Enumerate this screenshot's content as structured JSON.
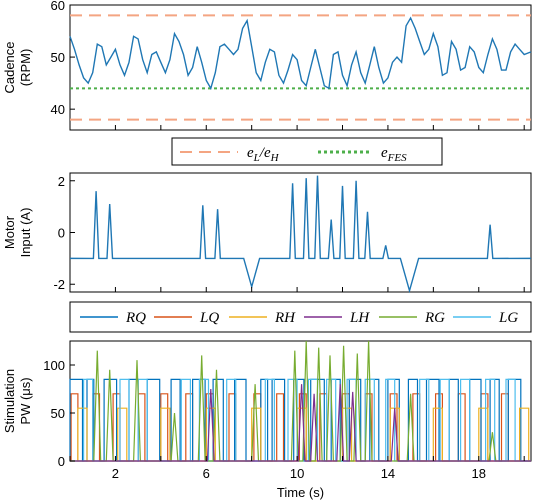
{
  "chart_data": [
    {
      "type": "line",
      "ylabel": [
        "Cadence",
        "(RPM)"
      ],
      "xlim": [
        0,
        20.3
      ],
      "ylim": [
        36,
        60
      ],
      "yticks": [
        40,
        50,
        60
      ],
      "series": [
        {
          "name": "cadence",
          "color": "#1f77b4",
          "x": [
            0,
            0.2,
            0.4,
            0.6,
            0.8,
            1.0,
            1.2,
            1.4,
            1.6,
            1.8,
            2.0,
            2.2,
            2.4,
            2.6,
            2.8,
            3.0,
            3.2,
            3.4,
            3.6,
            3.8,
            4.0,
            4.2,
            4.4,
            4.6,
            4.8,
            5.0,
            5.2,
            5.4,
            5.6,
            5.8,
            6.0,
            6.2,
            6.4,
            6.6,
            6.8,
            7.0,
            7.2,
            7.4,
            7.6,
            7.8,
            8.0,
            8.2,
            8.4,
            8.6,
            8.8,
            9.0,
            9.2,
            9.4,
            9.6,
            9.8,
            10.0,
            10.2,
            10.4,
            10.6,
            10.8,
            11.0,
            11.2,
            11.4,
            11.6,
            11.8,
            12.0,
            12.2,
            12.4,
            12.6,
            12.8,
            13.0,
            13.2,
            13.4,
            13.6,
            13.8,
            14.0,
            14.2,
            14.4,
            14.6,
            14.8,
            15.0,
            15.2,
            15.4,
            15.6,
            15.8,
            16.0,
            16.2,
            16.4,
            16.6,
            16.8,
            17.0,
            17.2,
            17.4,
            17.6,
            17.8,
            18.0,
            18.2,
            18.4,
            18.6,
            18.8,
            19.0,
            19.2,
            19.4,
            19.6,
            19.8,
            20.0,
            20.3
          ],
          "y": [
            54.0,
            51.5,
            48.5,
            46.0,
            45.0,
            47.0,
            52.5,
            52.0,
            48.5,
            50.0,
            51.5,
            48.5,
            46.5,
            49.0,
            54.0,
            53.5,
            49.5,
            47.0,
            50.5,
            51.0,
            49.0,
            47.0,
            49.5,
            54.5,
            53.0,
            50.5,
            46.5,
            48.0,
            52.0,
            49.0,
            45.5,
            44.0,
            47.0,
            52.0,
            52.5,
            51.5,
            50.5,
            51.5,
            55.5,
            57.0,
            52.0,
            47.0,
            45.5,
            49.0,
            51.5,
            51.0,
            46.5,
            45.0,
            47.5,
            50.5,
            49.5,
            45.5,
            44.5,
            48.0,
            51.5,
            48.0,
            44.5,
            44.0,
            50.5,
            51.0,
            46.5,
            44.5,
            48.5,
            51.0,
            47.0,
            45.0,
            48.5,
            52.0,
            48.0,
            45.0,
            46.0,
            49.0,
            50.0,
            49.0,
            56.0,
            57.5,
            55.5,
            53.0,
            50.5,
            51.5,
            54.5,
            52.0,
            46.5,
            47.0,
            53.0,
            51.5,
            47.5,
            48.0,
            52.0,
            51.0,
            48.0,
            47.0,
            50.5,
            53.5,
            51.5,
            47.5,
            47.5,
            51.0,
            52.5,
            51.5,
            50.5,
            51.0
          ]
        }
      ],
      "hlines": [
        {
          "name": "e_L/e_H",
          "values": [
            58,
            38
          ],
          "style": "dashed",
          "color": "#f4a582"
        },
        {
          "name": "e_FES",
          "values": [
            44
          ],
          "style": "dotted",
          "color": "#4daf4a"
        }
      ],
      "legend": {
        "placement": "below",
        "entries": [
          {
            "label": "e",
            "sub": "L",
            "label2": "/e",
            "sub2": "H",
            "style": "dashed",
            "color": "#f4a582"
          },
          {
            "label": "e",
            "sub": "FES",
            "style": "dotted",
            "color": "#4daf4a"
          }
        ]
      }
    },
    {
      "type": "line",
      "ylabel": [
        "Motor",
        "Input (A)"
      ],
      "xlim": [
        0,
        20.3
      ],
      "ylim": [
        -2.3,
        2.3
      ],
      "yticks": [
        -2,
        0,
        2
      ],
      "baseline": -1,
      "series": [
        {
          "name": "motor",
          "color": "#1f77b4",
          "spikes": [
            {
              "t": 1.15,
              "peak": 1.6
            },
            {
              "t": 1.75,
              "peak": 1.1
            },
            {
              "t": 5.85,
              "peak": 1.05
            },
            {
              "t": 6.5,
              "peak": 0.9
            },
            {
              "t": 8.0,
              "peak": -2.1,
              "width": 0.35
            },
            {
              "t": 9.8,
              "peak": 1.9
            },
            {
              "t": 10.4,
              "peak": 2.1
            },
            {
              "t": 10.9,
              "peak": 2.2
            },
            {
              "t": 11.5,
              "peak": 0.5
            },
            {
              "t": 12.0,
              "peak": 1.8
            },
            {
              "t": 12.6,
              "peak": 2.0
            },
            {
              "t": 13.1,
              "peak": 0.8
            },
            {
              "t": 13.9,
              "peak": -0.5
            },
            {
              "t": 14.95,
              "peak": -2.25,
              "width": 0.4
            },
            {
              "t": 18.5,
              "peak": 0.3
            }
          ]
        }
      ],
      "legend": {
        "placement": "below",
        "entries": [
          {
            "label": "RQ",
            "color": "#0072bd"
          },
          {
            "label": "LQ",
            "color": "#d95319"
          },
          {
            "label": "RH",
            "color": "#edb120"
          },
          {
            "label": "LH",
            "color": "#7e2f8e"
          },
          {
            "label": "RG",
            "color": "#77ac30"
          },
          {
            "label": "LG",
            "color": "#4dbeee"
          }
        ]
      }
    },
    {
      "type": "line",
      "ylabel": [
        "Stimulation",
        "PW (μs)"
      ],
      "xlabel": "Time (s)",
      "xlim": [
        0,
        20.3
      ],
      "ylim": [
        0,
        125
      ],
      "yticks": [
        0,
        50,
        100
      ],
      "xticks": [
        2,
        6,
        10,
        14,
        18
      ],
      "series": [
        {
          "name": "LQ",
          "color": "#d95319",
          "level": 70,
          "pulses": [
            [
              0.05,
              0.35
            ],
            [
              1.0,
              1.3
            ],
            [
              1.9,
              2.2
            ],
            [
              3.0,
              3.3
            ],
            [
              4.0,
              4.3
            ],
            [
              5.1,
              5.4
            ],
            [
              6.0,
              6.3
            ],
            [
              7.0,
              7.3
            ],
            [
              8.1,
              8.4
            ],
            [
              9.1,
              9.4
            ],
            [
              10.1,
              10.4
            ],
            [
              11.0,
              11.3
            ],
            [
              12.0,
              12.3
            ],
            [
              13.0,
              13.3
            ],
            [
              14.1,
              14.4
            ],
            [
              15.1,
              15.4
            ],
            [
              16.1,
              16.4
            ],
            [
              17.1,
              17.4
            ],
            [
              18.1,
              18.4
            ],
            [
              19.0,
              19.3
            ]
          ]
        },
        {
          "name": "RQ",
          "color": "#0072bd",
          "level": 85,
          "pulses": [
            [
              0.0,
              0.55
            ],
            [
              0.75,
              1.05
            ],
            [
              1.5,
              2.05
            ],
            [
              2.6,
              3.0
            ],
            [
              3.4,
              3.95
            ],
            [
              4.45,
              4.85
            ],
            [
              5.4,
              5.95
            ],
            [
              6.3,
              6.75
            ],
            [
              7.25,
              7.75
            ],
            [
              8.4,
              8.7
            ],
            [
              8.9,
              9.45
            ],
            [
              9.85,
              10.3
            ],
            [
              10.6,
              11.2
            ],
            [
              11.5,
              11.9
            ],
            [
              12.3,
              12.8
            ],
            [
              13.2,
              13.6
            ],
            [
              14.0,
              14.5
            ],
            [
              14.9,
              15.3
            ],
            [
              15.7,
              16.25
            ],
            [
              16.7,
              17.1
            ],
            [
              17.6,
              18.1
            ],
            [
              18.5,
              18.9
            ],
            [
              19.3,
              19.85
            ]
          ]
        },
        {
          "name": "RH",
          "color": "#edb120",
          "level": 55,
          "pulses": [
            [
              0.35,
              0.75
            ],
            [
              2.1,
              2.5
            ],
            [
              4.0,
              4.4
            ],
            [
              6.0,
              6.4
            ],
            [
              8.0,
              8.4
            ],
            [
              10.0,
              10.4
            ],
            [
              12.0,
              12.4
            ],
            [
              14.1,
              14.5
            ],
            [
              16.0,
              16.4
            ],
            [
              18.0,
              18.4
            ],
            [
              19.8,
              20.2
            ]
          ]
        },
        {
          "name": "LG",
          "color": "#4dbeee",
          "level": 85,
          "pulses": [
            [
              0.6,
              1.0
            ],
            [
              2.2,
              2.6
            ],
            [
              3.0,
              3.4
            ],
            [
              4.9,
              5.3
            ],
            [
              5.7,
              6.1
            ],
            [
              6.9,
              7.3
            ],
            [
              8.6,
              9.0
            ],
            [
              9.6,
              10.0
            ],
            [
              10.5,
              10.9
            ],
            [
              11.3,
              11.7
            ],
            [
              12.2,
              12.6
            ],
            [
              13.0,
              13.4
            ],
            [
              13.9,
              14.3
            ],
            [
              15.4,
              15.8
            ],
            [
              16.3,
              16.7
            ],
            [
              17.2,
              17.6
            ],
            [
              18.3,
              18.7
            ],
            [
              19.2,
              19.6
            ]
          ]
        },
        {
          "name": "RG",
          "color": "#77ac30",
          "spikes": [
            {
              "t": 1.2,
              "peak": 115
            },
            {
              "t": 1.75,
              "peak": 95
            },
            {
              "t": 2.95,
              "peak": 105
            },
            {
              "t": 4.6,
              "peak": 50
            },
            {
              "t": 5.8,
              "peak": 110
            },
            {
              "t": 6.45,
              "peak": 95
            },
            {
              "t": 8.15,
              "peak": 80
            },
            {
              "t": 9.9,
              "peak": 115
            },
            {
              "t": 10.4,
              "peak": 125
            },
            {
              "t": 10.95,
              "peak": 118
            },
            {
              "t": 11.45,
              "peak": 110
            },
            {
              "t": 12.05,
              "peak": 120
            },
            {
              "t": 12.65,
              "peak": 112
            },
            {
              "t": 13.15,
              "peak": 125
            },
            {
              "t": 15.0,
              "peak": 70
            },
            {
              "t": 18.6,
              "peak": 30
            }
          ]
        },
        {
          "name": "LH",
          "color": "#7e2f8e",
          "spikes": [
            {
              "t": 6.2,
              "peak": 75
            },
            {
              "t": 10.2,
              "peak": 80
            },
            {
              "t": 10.75,
              "peak": 70
            },
            {
              "t": 11.9,
              "peak": 80
            },
            {
              "t": 12.45,
              "peak": 72
            },
            {
              "t": 14.3,
              "peak": 55
            }
          ]
        }
      ]
    }
  ]
}
